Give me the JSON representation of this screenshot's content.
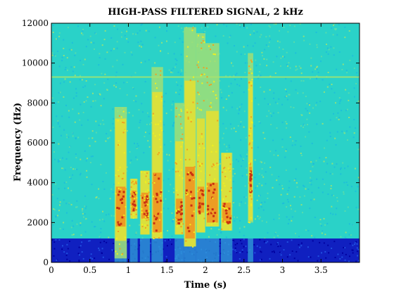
{
  "chart_data": {
    "type": "heatmap",
    "title": "HIGH-PASS FILTERED SIGNAL, 2 kHz",
    "xlabel": "Time (s)",
    "ylabel": "Frequency (Hz)",
    "xlim": [
      0,
      4
    ],
    "ylim": [
      0,
      12000
    ],
    "x_ticks": [
      0,
      0.5,
      1,
      1.5,
      2,
      2.5,
      3,
      3.5
    ],
    "x_tick_labels": [
      "0",
      "0.5",
      "1",
      "1.5",
      "2",
      "2.5",
      "3",
      "3.5"
    ],
    "y_ticks": [
      0,
      2000,
      4000,
      6000,
      8000,
      10000,
      12000
    ],
    "y_tick_labels": [
      "0",
      "2000",
      "4000",
      "6000",
      "8000",
      "10000",
      "12000"
    ],
    "colormap": "jet",
    "colors": {
      "background_noise": "#2ad2c8",
      "low_band_attenuated": "#1020c0",
      "speech_energy": "#e8e030",
      "speech_peaks": "#c83010"
    },
    "attenuated_band_hz": [
      0,
      1200
    ],
    "horizontal_tone_hz": 9300,
    "speech_bursts": [
      {
        "t": [
          0.82,
          0.98
        ],
        "f": [
          200,
          7800
        ],
        "peak_f": [
          1800,
          3800
        ]
      },
      {
        "t": [
          1.02,
          1.12
        ],
        "f": [
          2200,
          4200
        ],
        "peak_f": [
          2600,
          3600
        ]
      },
      {
        "t": [
          1.15,
          1.28
        ],
        "f": [
          1400,
          4600
        ],
        "peak_f": [
          2200,
          3500
        ]
      },
      {
        "t": [
          1.3,
          1.45
        ],
        "f": [
          1200,
          9800
        ],
        "peak_f": [
          1500,
          4500
        ]
      },
      {
        "t": [
          1.6,
          1.72
        ],
        "f": [
          1400,
          8000
        ],
        "peak_f": [
          2000,
          3200
        ]
      },
      {
        "t": [
          1.72,
          1.88
        ],
        "f": [
          800,
          11800
        ],
        "peak_f": [
          1200,
          4800
        ]
      },
      {
        "t": [
          1.88,
          2.0
        ],
        "f": [
          1500,
          11500
        ],
        "peak_f": [
          2500,
          3800
        ]
      },
      {
        "t": [
          2.0,
          2.18
        ],
        "f": [
          1800,
          11000
        ],
        "peak_f": [
          2000,
          4000
        ]
      },
      {
        "t": [
          2.2,
          2.35
        ],
        "f": [
          1600,
          5500
        ],
        "peak_f": [
          2000,
          3000
        ]
      },
      {
        "t": [
          2.55,
          2.62
        ],
        "f": [
          2000,
          10500
        ],
        "peak_f": [
          3500,
          4800
        ]
      }
    ]
  }
}
